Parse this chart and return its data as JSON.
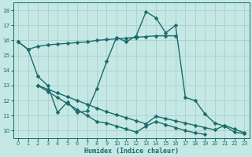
{
  "xlabel": "Humidex (Indice chaleur)",
  "xlim": [
    -0.5,
    23.5
  ],
  "ylim": [
    9.5,
    18.5
  ],
  "yticks": [
    10,
    11,
    12,
    13,
    14,
    15,
    16,
    17,
    18
  ],
  "xticks": [
    0,
    1,
    2,
    3,
    4,
    5,
    6,
    7,
    8,
    9,
    10,
    11,
    12,
    13,
    14,
    15,
    16,
    17,
    18,
    19,
    20,
    21,
    22,
    23
  ],
  "bg_color": "#c5e8e5",
  "grid_color": "#a8d0cc",
  "line_color": "#1a6b6b",
  "line_width": 1.0,
  "marker_size": 2.5,
  "line1_x": [
    0,
    1,
    2,
    3,
    4,
    5,
    6,
    7,
    8,
    9,
    10,
    11,
    12,
    13,
    14,
    15,
    16
  ],
  "line1_y": [
    15.9,
    15.4,
    15.6,
    15.7,
    15.75,
    15.8,
    15.85,
    15.9,
    16.0,
    16.05,
    16.1,
    16.15,
    16.2,
    16.25,
    16.3,
    16.3,
    16.3
  ],
  "line2_x": [
    0,
    1,
    2,
    3,
    4,
    5,
    6,
    7,
    8,
    9,
    10,
    11,
    12,
    13,
    14,
    15,
    16,
    17,
    18,
    19,
    20,
    21,
    22,
    23
  ],
  "line2_y": [
    15.9,
    15.4,
    13.6,
    13.0,
    11.2,
    11.9,
    11.2,
    11.3,
    12.8,
    14.6,
    16.2,
    15.9,
    16.3,
    17.9,
    17.5,
    16.5,
    17.0,
    12.2,
    12.0,
    11.1,
    10.5,
    10.3,
    9.9,
    9.8
  ],
  "line3_x": [
    2,
    3,
    4,
    5,
    6,
    7,
    8,
    9,
    10,
    11,
    12,
    13,
    14,
    15,
    16,
    17,
    18,
    19,
    20,
    21,
    22,
    23
  ],
  "line3_y": [
    13.0,
    12.75,
    12.5,
    12.25,
    12.0,
    11.75,
    11.5,
    11.25,
    11.05,
    10.85,
    10.65,
    10.45,
    10.95,
    10.8,
    10.65,
    10.5,
    10.35,
    10.2,
    10.05,
    10.35,
    10.1,
    9.85
  ],
  "line4_x": [
    2,
    3,
    4,
    5,
    6,
    7,
    8,
    9,
    10,
    11,
    12,
    13,
    14,
    15,
    16,
    17,
    18,
    19,
    20,
    21,
    22,
    23
  ],
  "line4_y": [
    13.0,
    12.6,
    12.2,
    11.8,
    11.4,
    11.0,
    10.6,
    10.5,
    10.3,
    10.1,
    9.9,
    10.3,
    10.6,
    10.4,
    10.2,
    10.0,
    9.85,
    9.75,
    null,
    null,
    null,
    null
  ]
}
